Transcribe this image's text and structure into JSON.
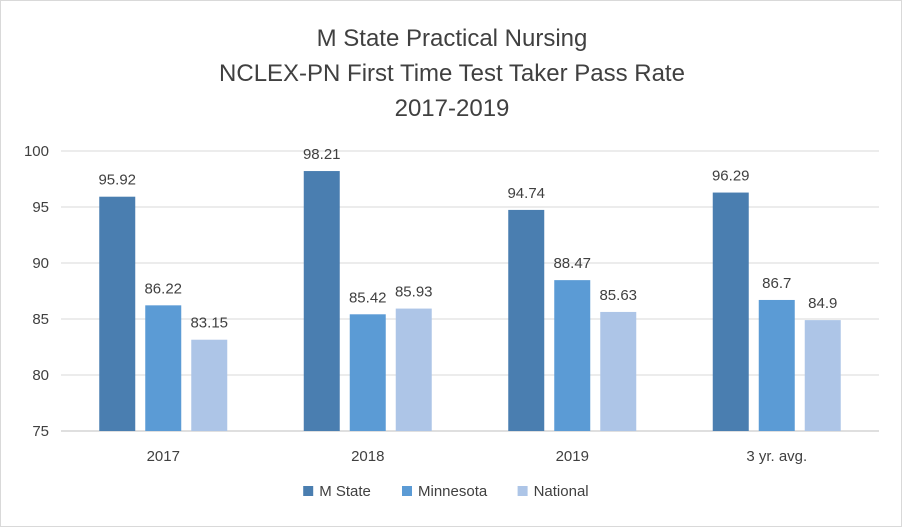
{
  "chart_data": {
    "type": "bar",
    "title": [
      "M State Practical Nursing",
      "NCLEX-PN First Time Test Taker Pass Rate",
      "2017-2019"
    ],
    "categories": [
      "2017",
      "2018",
      "2019",
      "3 yr. avg."
    ],
    "series": [
      {
        "name": "M State",
        "color": "#4a7eb0",
        "values": [
          95.92,
          98.21,
          94.74,
          96.29
        ],
        "labels": [
          "95.92",
          "98.21",
          "94.74",
          "96.29"
        ]
      },
      {
        "name": "Minnesota",
        "color": "#5b9bd5",
        "values": [
          86.22,
          85.42,
          88.47,
          86.7
        ],
        "labels": [
          "86.22",
          "85.42",
          "88.47",
          "86.7"
        ]
      },
      {
        "name": "National",
        "color": "#adc5e7",
        "values": [
          83.15,
          85.93,
          85.63,
          84.9
        ],
        "labels": [
          "83.15",
          "85.93",
          "85.63",
          "84.9"
        ]
      }
    ],
    "ylim": [
      75,
      100
    ],
    "yticks": [
      "75",
      "80",
      "85",
      "90",
      "95",
      "100"
    ],
    "grid": true,
    "legend": "bottom",
    "xlabel": "",
    "ylabel": ""
  }
}
